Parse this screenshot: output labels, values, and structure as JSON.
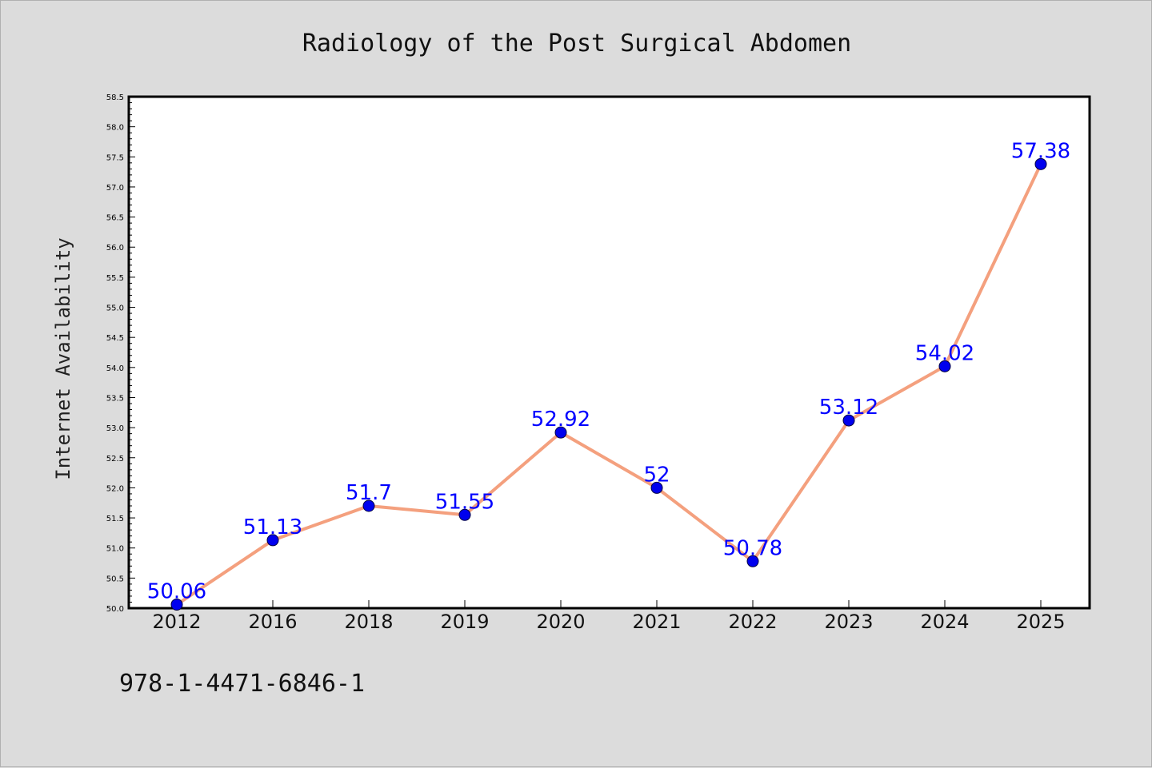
{
  "chart_data": {
    "type": "line",
    "title": "Radiology of the Post Surgical Abdomen",
    "xlabel": "",
    "ylabel": "Internet Availability",
    "categories": [
      "2012",
      "2016",
      "2018",
      "2019",
      "2020",
      "2021",
      "2022",
      "2023",
      "2024",
      "2025"
    ],
    "series": [
      {
        "values": [
          50.06,
          51.13,
          51.7,
          51.55,
          52.92,
          52,
          50.78,
          53.12,
          54.02,
          57.38
        ],
        "data_labels": [
          "50.06",
          "51.13",
          "51.7",
          "51.55",
          "52.92",
          "52",
          "50.78",
          "53.12",
          "54.02",
          "57.38"
        ],
        "line_color": "#f4a07e",
        "marker_color": "#0000ee"
      }
    ],
    "ylim": [
      50.0,
      58.5
    ],
    "yticks": [
      "50.0",
      "50.5",
      "51.0",
      "51.5",
      "52.0",
      "52.5",
      "53.0",
      "53.5",
      "54.0",
      "54.5",
      "55.0",
      "55.5",
      "56.0",
      "56.5",
      "57.0",
      "57.5",
      "58.0",
      "58.5"
    ],
    "grid": false,
    "legend": "none"
  },
  "footer": {
    "isbn": "978-1-4471-6846-1"
  }
}
